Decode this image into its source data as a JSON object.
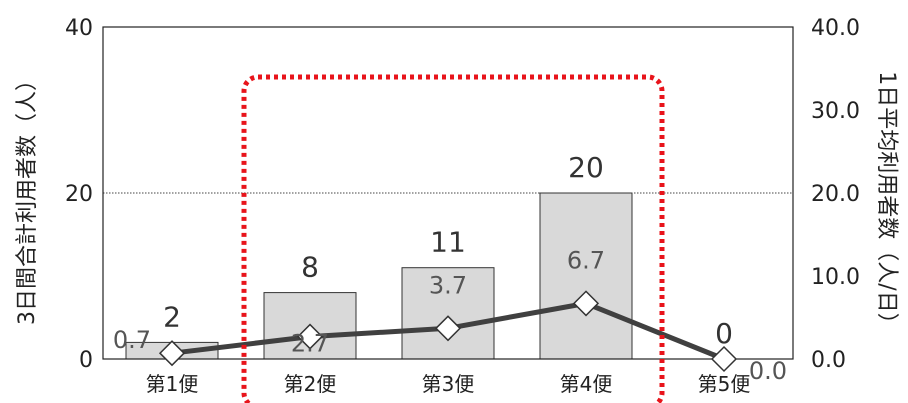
{
  "chart_data": {
    "type": "bar",
    "categories": [
      "第1便",
      "第2便",
      "第3便",
      "第4便",
      "第5便"
    ],
    "series": [
      {
        "name": "3日間合計利用者数（人）",
        "type": "bar",
        "axis": "left",
        "values": [
          2,
          8,
          11,
          20,
          0
        ],
        "labels": [
          "2",
          "8",
          "11",
          "20",
          "0"
        ],
        "color": "#d9d9d9"
      },
      {
        "name": "1日平均利用者数（人/日）",
        "type": "line",
        "axis": "right",
        "values": [
          0.7,
          2.7,
          3.7,
          6.7,
          0.0
        ],
        "labels": [
          "0.7",
          "2.7",
          "3.7",
          "6.7",
          "0.0"
        ],
        "color": "#404040"
      }
    ],
    "y_left": {
      "label": "3日間合計利用者数（人）",
      "ticks": [
        "0",
        "20",
        "40"
      ],
      "lim": [
        0,
        40
      ]
    },
    "y_right": {
      "label": "1日平均利用者数（人/日）",
      "ticks": [
        "0.0",
        "10.0",
        "20.0",
        "30.0",
        "40.0"
      ],
      "lim": [
        0,
        40
      ]
    },
    "grid": "dotted line at 20",
    "highlight": {
      "categories": [
        "第2便",
        "第3便",
        "第4便"
      ],
      "color": "#e8141b",
      "style": "dotted rounded rectangle"
    }
  }
}
